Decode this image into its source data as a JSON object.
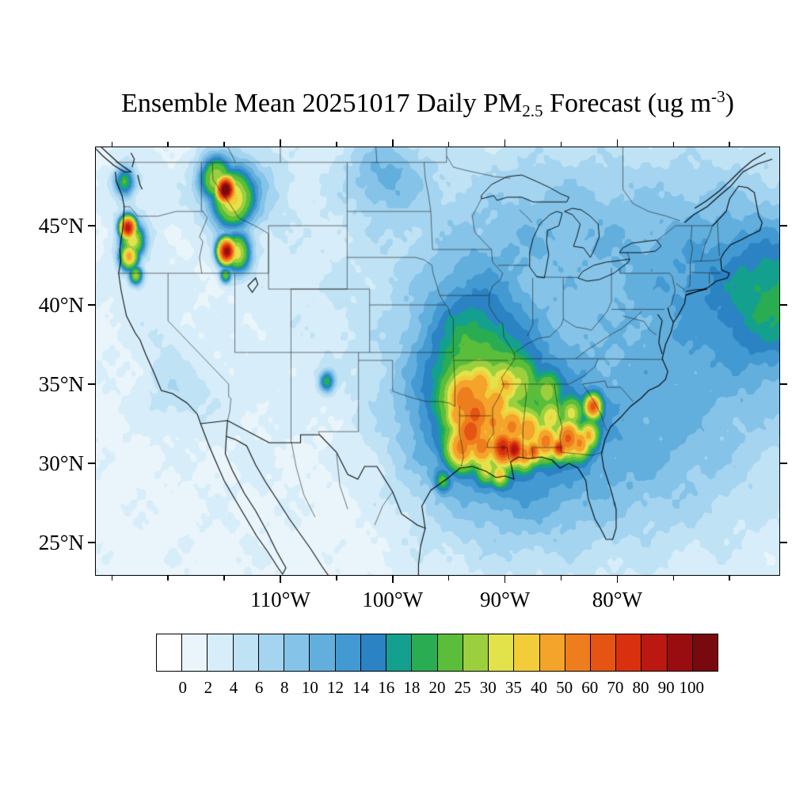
{
  "figure": {
    "background": "#ffffff",
    "frame_color": "#000000"
  },
  "title": {
    "prefix": "Ensemble Mean 20251017 Daily PM",
    "subscript": "2.5",
    "middle": " Forecast (ug m",
    "superscript": "-3",
    "suffix": ")"
  },
  "axes": {
    "lat_ticks": [
      {
        "label": "45°N",
        "value": 45
      },
      {
        "label": "40°N",
        "value": 40
      },
      {
        "label": "35°N",
        "value": 35
      },
      {
        "label": "30°N",
        "value": 30
      },
      {
        "label": "25°N",
        "value": 25
      }
    ],
    "lon_ticks": [
      {
        "label": "110°W",
        "value": -110
      },
      {
        "label": "100°W",
        "value": -100
      },
      {
        "label": "90°W",
        "value": -90
      },
      {
        "label": "80°W",
        "value": -80
      }
    ],
    "lon_minor_ticks": [
      -125,
      -120,
      -115,
      -105,
      -95,
      -85,
      -75,
      -70
    ],
    "lon_range": [
      -126.5,
      -65.5
    ],
    "lat_range": [
      22.9,
      50.0
    ]
  },
  "colorbar": {
    "labels": [
      "0",
      "2",
      "4",
      "6",
      "8",
      "10",
      "12",
      "14",
      "16",
      "18",
      "20",
      "25",
      "30",
      "35",
      "40",
      "50",
      "60",
      "70",
      "80",
      "90",
      "100"
    ]
  },
  "chart_data": {
    "type": "heatmap",
    "title": "Ensemble Mean 20251017 Daily PM2.5 Forecast (ug m-3)",
    "variable": "PM2.5",
    "date": "20251017",
    "units": "ug m-3",
    "lon_range": [
      -126.5,
      -65.5
    ],
    "lat_range": [
      22.9,
      50.0
    ],
    "levels": [
      0,
      2,
      4,
      6,
      8,
      10,
      12,
      14,
      16,
      18,
      20,
      25,
      30,
      35,
      40,
      50,
      60,
      70,
      80,
      90,
      100
    ],
    "palette": [
      "#ffffff",
      "#e9f5fb",
      "#d7edf9",
      "#bfe2f5",
      "#a4d4ef",
      "#85c3e8",
      "#62aedd",
      "#4399d2",
      "#2b83c3",
      "#14a08e",
      "#2aad52",
      "#5abe3a",
      "#9ccf3e",
      "#e2e24a",
      "#f3cd39",
      "#f4a32b",
      "#ee7e1d",
      "#e65413",
      "#d93110",
      "#ba1810",
      "#990d11",
      "#780a0e"
    ],
    "background_base": 1.2,
    "field_blob_format": [
      "lon",
      "lat",
      "peak_ugm3",
      "sigma_lon_deg",
      "sigma_lat_deg"
    ],
    "field_blobs": [
      [
        -85,
        38,
        4.5,
        18,
        10
      ],
      [
        -70,
        39.5,
        5,
        8,
        7
      ],
      [
        -65.3,
        40.5,
        10,
        3.5,
        3.2
      ],
      [
        -93.5,
        38.5,
        6,
        3.2,
        3.2
      ],
      [
        -91.8,
        36.2,
        5,
        3.2,
        3.2
      ],
      [
        -90.5,
        32.8,
        11,
        5.5,
        3.6
      ],
      [
        -85.8,
        45.3,
        4,
        5.5,
        3.2
      ],
      [
        -100.8,
        48.3,
        7,
        2.6,
        1.8
      ],
      [
        -113.9,
        47.4,
        8,
        2.8,
        2
      ],
      [
        -88.5,
        27.2,
        3.5,
        6,
        3
      ],
      [
        -77.5,
        30.5,
        4,
        6,
        4
      ],
      [
        -73,
        42.5,
        3,
        5,
        4
      ],
      [
        -123.3,
        45.3,
        2.5,
        1.8,
        4
      ],
      [
        -118.8,
        34.3,
        3,
        2.5,
        1.5
      ],
      [
        -120.4,
        37.3,
        2,
        1.4,
        2.2
      ],
      [
        -104.5,
        26.5,
        -1.3,
        3.5,
        3
      ],
      [
        -106.3,
        31.8,
        -1,
        2.5,
        2
      ],
      [
        -96.5,
        44,
        1.5,
        6,
        4
      ],
      [
        -96,
        33.5,
        2.5,
        3,
        3
      ],
      [
        -114.9,
        47.3,
        110,
        0.5,
        0.5
      ],
      [
        -114.3,
        46.7,
        28,
        1.1,
        1.1
      ],
      [
        -115.8,
        48,
        22,
        0.9,
        0.9
      ],
      [
        -123.9,
        47.8,
        18,
        0.6,
        0.6
      ],
      [
        -123.6,
        44.9,
        85,
        0.45,
        0.45
      ],
      [
        -123.2,
        44.1,
        30,
        0.7,
        0.7
      ],
      [
        -123.5,
        43.1,
        40,
        0.55,
        0.55
      ],
      [
        -122.9,
        41.9,
        26,
        0.4,
        0.4
      ],
      [
        -114.8,
        43.4,
        95,
        0.5,
        0.5
      ],
      [
        -113.9,
        43.3,
        30,
        0.8,
        0.8
      ],
      [
        -114.9,
        41.9,
        22,
        0.35,
        0.35
      ],
      [
        -105.9,
        35.2,
        16,
        0.45,
        0.45
      ],
      [
        -93.6,
        34.1,
        38,
        1,
        1
      ],
      [
        -92.7,
        33.1,
        42,
        1.1,
        1.1
      ],
      [
        -93.1,
        32,
        50,
        0.9,
        0.9
      ],
      [
        -93.9,
        31,
        40,
        0.8,
        0.8
      ],
      [
        -92.1,
        31.1,
        38,
        0.8,
        0.8
      ],
      [
        -91.1,
        32.6,
        32,
        0.9,
        0.9
      ],
      [
        -90.2,
        31,
        65,
        0.7,
        0.7
      ],
      [
        -89.2,
        30.9,
        75,
        0.55,
        0.55
      ],
      [
        -88.3,
        30.6,
        40,
        0.55,
        0.55
      ],
      [
        -87.5,
        30.8,
        50,
        0.45,
        0.45
      ],
      [
        -86.4,
        31.4,
        40,
        0.7,
        0.7
      ],
      [
        -85.2,
        31,
        65,
        0.4,
        0.4
      ],
      [
        -84.4,
        31.6,
        50,
        0.7,
        0.7
      ],
      [
        -83.4,
        31.3,
        40,
        0.6,
        0.6
      ],
      [
        -82.6,
        31.8,
        30,
        0.55,
        0.55
      ],
      [
        -82.2,
        33.6,
        55,
        0.45,
        0.45
      ],
      [
        -88.7,
        35.2,
        12,
        0.9,
        0.9
      ],
      [
        -86.2,
        34.6,
        13,
        0.7,
        0.7
      ],
      [
        -90.5,
        29.3,
        25,
        0.45,
        0.45
      ],
      [
        -91.7,
        29.7,
        20,
        0.55,
        0.55
      ],
      [
        -95.6,
        28.9,
        12,
        0.45,
        0.45
      ],
      [
        -89.9,
        35,
        20,
        0.8,
        0.8
      ],
      [
        -92.3,
        34.9,
        25,
        0.8,
        0.8
      ],
      [
        -94.1,
        33.1,
        30,
        0.7,
        0.7
      ],
      [
        -90.8,
        33.8,
        26,
        0.8,
        0.8
      ],
      [
        -89.4,
        32.3,
        34,
        0.8,
        0.8
      ],
      [
        -88,
        32.1,
        30,
        0.8,
        0.8
      ],
      [
        -85.9,
        32.9,
        20,
        0.7,
        0.7
      ],
      [
        -84.1,
        33.2,
        20,
        0.6,
        0.6
      ]
    ]
  }
}
